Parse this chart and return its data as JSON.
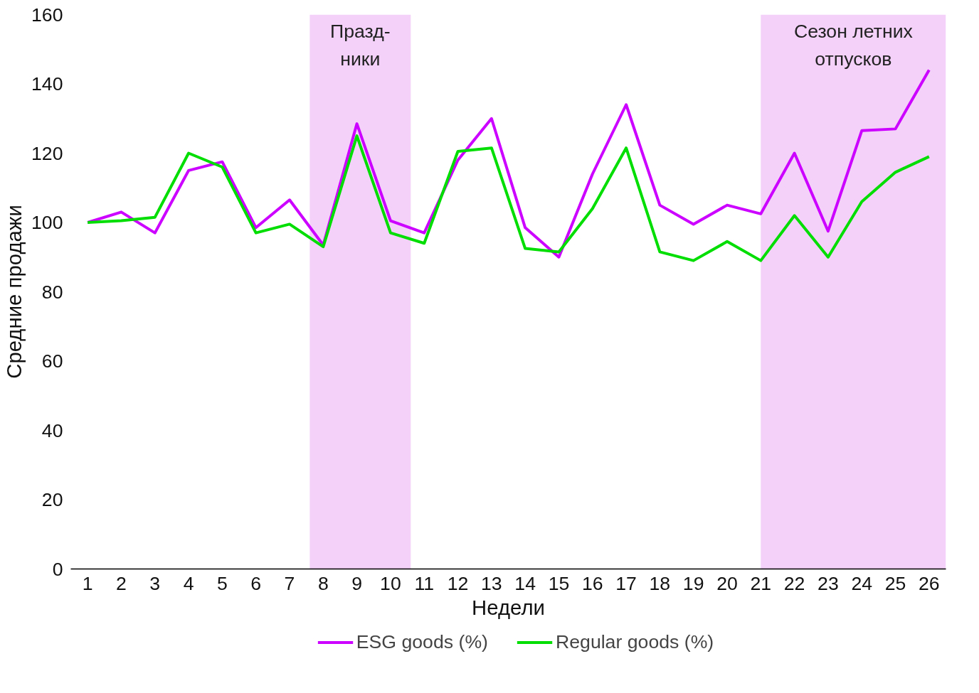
{
  "chart_data": {
    "type": "line",
    "xlabel": "Недели",
    "ylabel": "Средние продажи",
    "x": [
      1,
      2,
      3,
      4,
      5,
      6,
      7,
      8,
      9,
      10,
      11,
      12,
      13,
      14,
      15,
      16,
      17,
      18,
      19,
      20,
      21,
      22,
      23,
      24,
      25,
      26
    ],
    "series": [
      {
        "name": "ESG goods (%)",
        "color": "#cc00ff",
        "values": [
          100,
          103,
          97,
          115,
          117.5,
          98.5,
          106.5,
          93.5,
          128.5,
          100.5,
          97,
          118,
          130,
          98.5,
          90,
          114,
          134,
          105,
          99.5,
          105,
          102.5,
          120,
          97.5,
          126.5,
          127,
          144
        ]
      },
      {
        "name": "Regular goods (%)",
        "color": "#00dd00",
        "values": [
          100,
          100.5,
          101.5,
          120,
          116,
          97,
          99.5,
          93,
          125,
          97,
          94,
          120.5,
          121.5,
          92.5,
          91.5,
          104,
          121.5,
          91.5,
          89,
          94.5,
          89,
          102,
          90,
          106,
          114.5,
          119
        ]
      }
    ],
    "xlim": [
      0.5,
      26.5
    ],
    "xticks": [
      1,
      2,
      3,
      4,
      5,
      6,
      7,
      8,
      9,
      10,
      11,
      12,
      13,
      14,
      15,
      16,
      17,
      18,
      19,
      20,
      21,
      22,
      23,
      24,
      25,
      26
    ],
    "ylim": [
      0,
      160
    ],
    "yticks": [
      0,
      20,
      40,
      60,
      80,
      100,
      120,
      140,
      160
    ],
    "bands": [
      {
        "axis": "x",
        "from": 7.6,
        "to": 10.6,
        "label": "Празд-\nники",
        "color": "#f3d1f9"
      },
      {
        "axis": "x",
        "from": 21.0,
        "to": 26.5,
        "label": "Сезон летних\nотпусков",
        "color": "#f3d1f9"
      }
    ],
    "grid": false,
    "legend": "bottom",
    "marker": "none",
    "line_style": "solid"
  }
}
